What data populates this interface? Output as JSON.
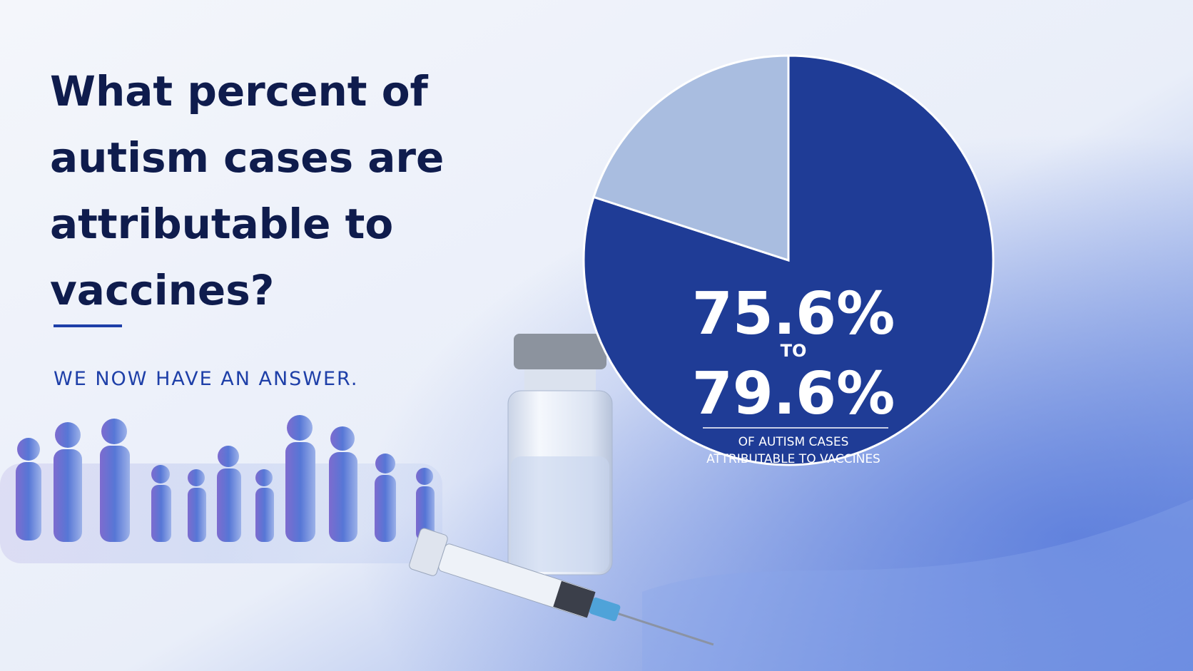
{
  "chart_data": {
    "type": "pie",
    "title_lines": [
      "What percent of",
      "autism cases are",
      "attributable to",
      "vaccines?"
    ],
    "subtitle": "WE NOW HAVE AN ANSWER.",
    "values": [
      80,
      20
    ],
    "colors": [
      "#1f3c96",
      "#a9bde0"
    ],
    "annotations": {
      "low": "75.6%",
      "connector": "TO",
      "high": "79.6%",
      "caption_lines": [
        "OF AUTISM CASES",
        "ATTRIBUTABLE TO VACCINES"
      ]
    }
  }
}
